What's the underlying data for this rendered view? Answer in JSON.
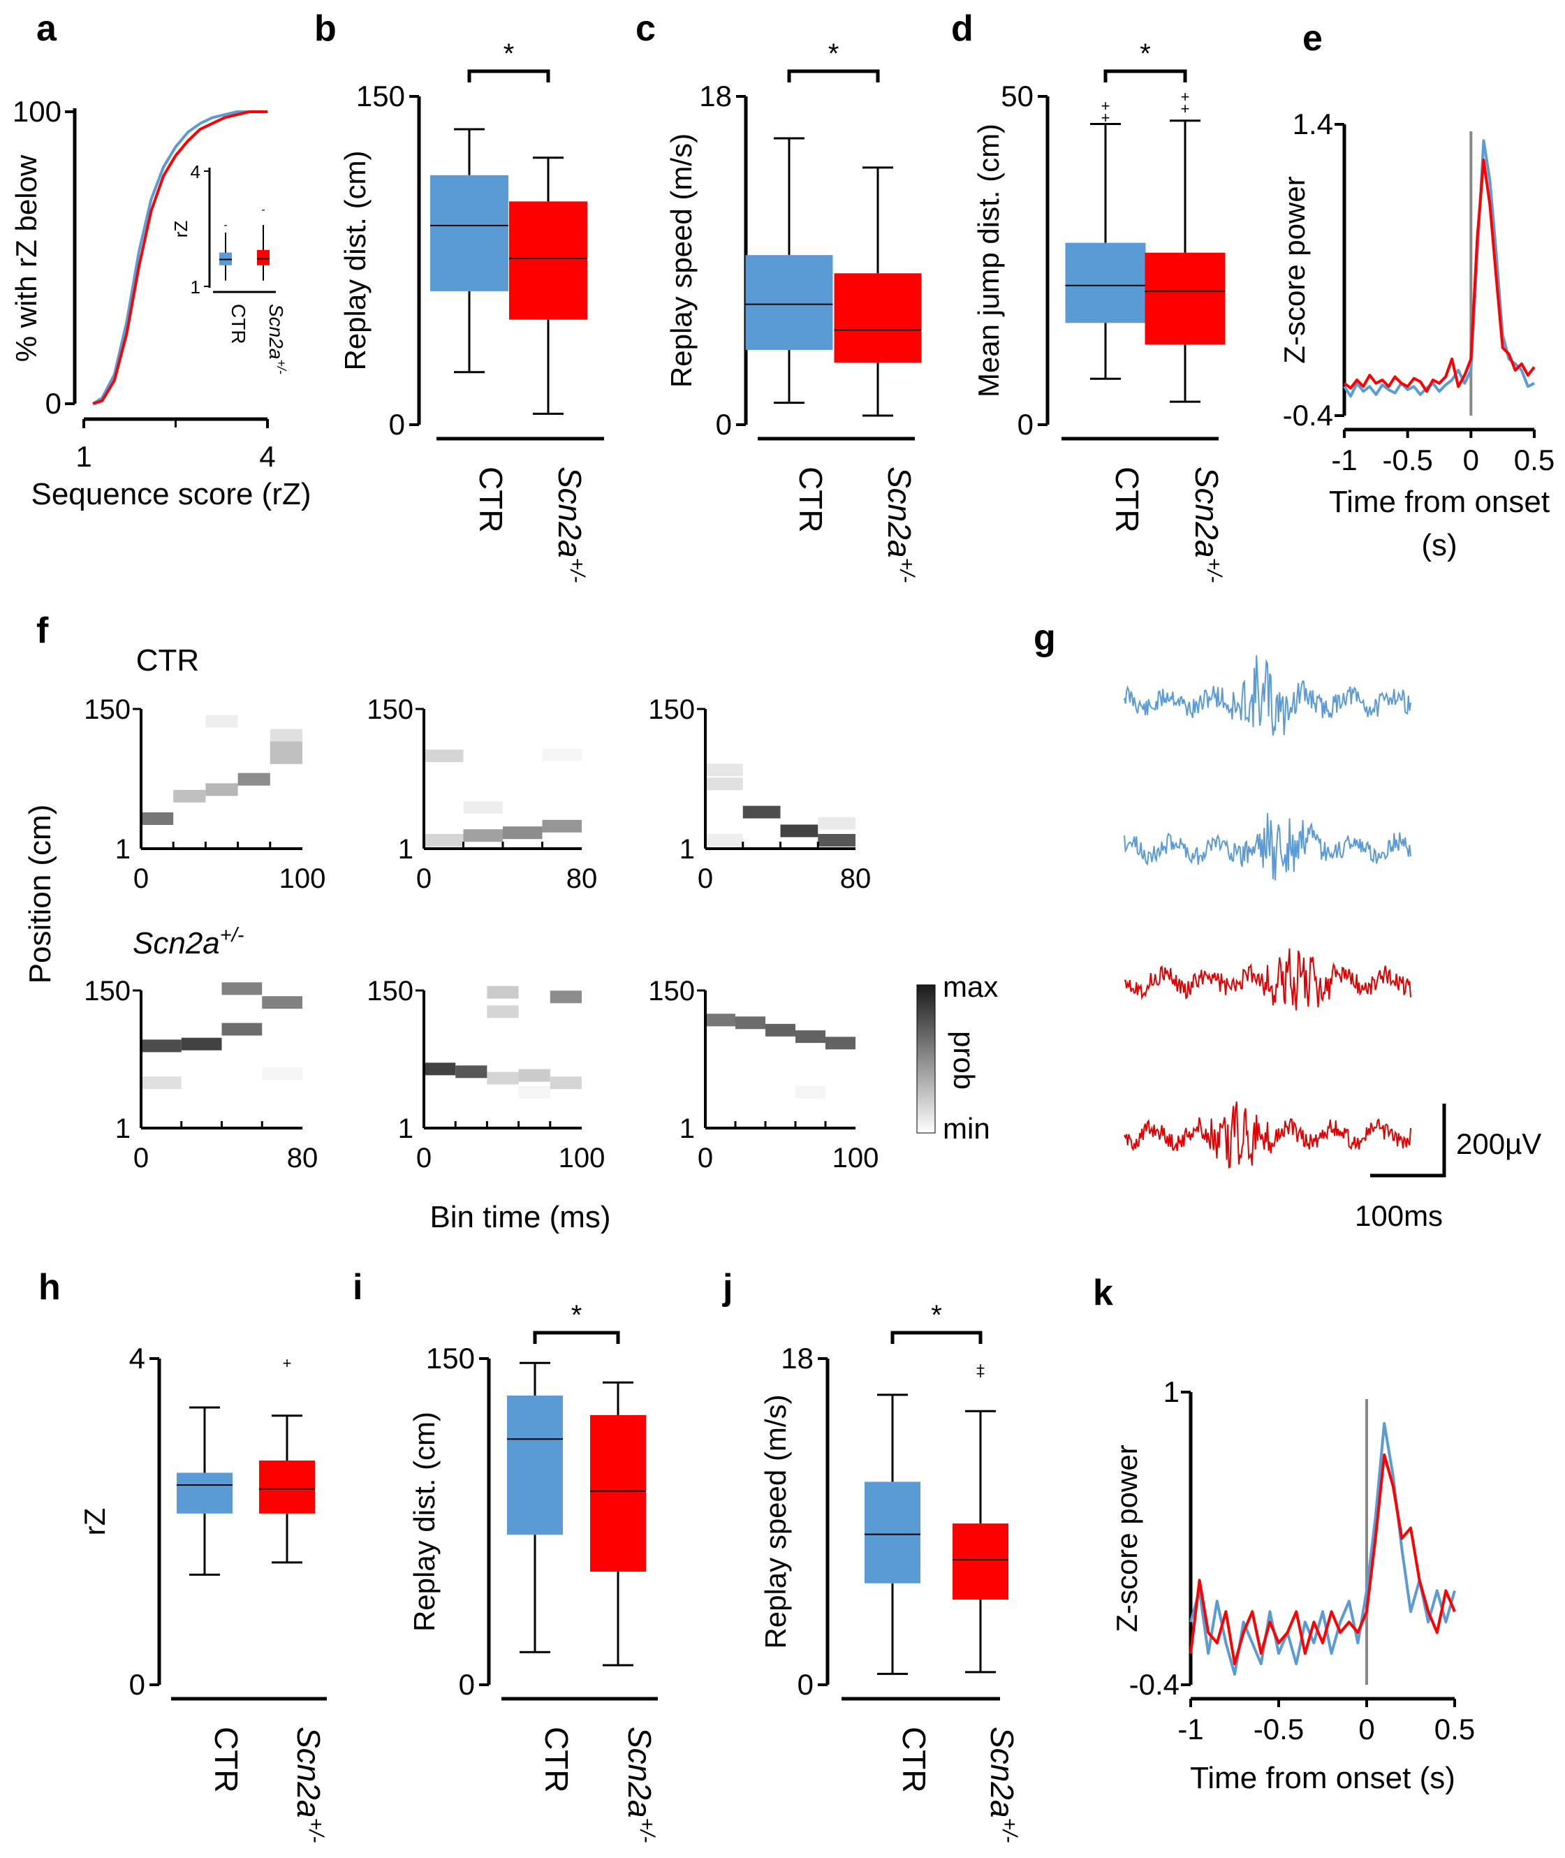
{
  "colors": {
    "ctr": "#5b9bd5",
    "scn": "#ff0000",
    "scn_line": "#e00000"
  },
  "group_labels": {
    "ctr": "CTR",
    "scn_base": "Scn2a",
    "scn_sup": "+/-"
  },
  "sig_marker": "*",
  "chart_data": [
    {
      "id": "a",
      "panel": "a",
      "type": "line",
      "title": "",
      "xlabel": "Sequence score (rZ)",
      "ylabel": "% with rZ below",
      "xlim": [
        1,
        4
      ],
      "ylim": [
        0,
        100
      ],
      "xticks": [
        "1",
        "4"
      ],
      "yticks": [
        "0",
        "100"
      ],
      "series": [
        {
          "name": "CTR",
          "color": "ctr",
          "x": [
            1.15,
            1.3,
            1.5,
            1.7,
            1.9,
            2.1,
            2.3,
            2.5,
            2.7,
            2.9,
            3.1,
            3.3,
            3.5,
            3.7,
            4.0
          ],
          "y": [
            0,
            2,
            10,
            28,
            52,
            70,
            81,
            88,
            93,
            96,
            98,
            99,
            100,
            100,
            100
          ]
        },
        {
          "name": "Scn2a+/-",
          "color": "scn",
          "x": [
            1.15,
            1.3,
            1.5,
            1.7,
            1.9,
            2.1,
            2.3,
            2.5,
            2.7,
            2.9,
            3.1,
            3.3,
            3.5,
            3.7,
            4.0
          ],
          "y": [
            0,
            1,
            8,
            24,
            47,
            66,
            78,
            85,
            90,
            94,
            96,
            98,
            99,
            100,
            100
          ]
        }
      ],
      "inset": {
        "ylabel": "rZ",
        "ylim": [
          1,
          4
        ],
        "yticks": [
          "1",
          "4"
        ],
        "groups": [
          {
            "name": "CTR",
            "min": 1.15,
            "q1": 1.55,
            "median": 1.7,
            "q3": 1.88,
            "max": 2.4,
            "outliers": [
              2.6
            ]
          },
          {
            "name": "Scn2a+/-",
            "min": 1.15,
            "q1": 1.55,
            "median": 1.72,
            "q3": 1.95,
            "max": 2.6,
            "outliers": [
              3.0
            ]
          }
        ]
      }
    },
    {
      "id": "b",
      "panel": "b",
      "type": "box",
      "ylabel": "Replay dist. (cm)",
      "ylim": [
        0,
        150
      ],
      "yticks": [
        "0",
        "150"
      ],
      "sig": true,
      "groups": [
        {
          "name": "CTR",
          "min": 24,
          "q1": 61,
          "median": 91,
          "q3": 114,
          "max": 135,
          "outliers": []
        },
        {
          "name": "Scn2a+/-",
          "min": 5,
          "q1": 48,
          "median": 76,
          "q3": 102,
          "max": 122,
          "outliers": []
        }
      ]
    },
    {
      "id": "c",
      "panel": "c",
      "type": "box",
      "ylabel": "Replay speed (m/s)",
      "ylim": [
        0,
        18
      ],
      "yticks": [
        "0",
        "18"
      ],
      "sig": true,
      "groups": [
        {
          "name": "CTR",
          "min": 1.2,
          "q1": 4.1,
          "median": 6.6,
          "q3": 9.3,
          "max": 15.7,
          "outliers": []
        },
        {
          "name": "Scn2a+/-",
          "min": 0.5,
          "q1": 3.4,
          "median": 5.2,
          "q3": 8.3,
          "max": 14.1,
          "outliers": []
        }
      ]
    },
    {
      "id": "d",
      "panel": "d",
      "type": "box",
      "ylabel": "Mean jump dist. (cm)",
      "ylim": [
        0,
        50
      ],
      "yticks": [
        "0",
        "50"
      ],
      "sig": true,
      "groups": [
        {
          "name": "CTR",
          "min": 7,
          "q1": 15.5,
          "median": 21.2,
          "q3": 27.7,
          "max": 45.8,
          "outliers": [
            46.8,
            48.6
          ]
        },
        {
          "name": "Scn2a+/-",
          "min": 3.5,
          "q1": 12.2,
          "median": 20.3,
          "q3": 26.2,
          "max": 46.3,
          "outliers": [
            48.2,
            50.0
          ]
        }
      ]
    },
    {
      "id": "e",
      "panel": "e",
      "type": "line",
      "ylabel": "Z-score power",
      "xlabel": "Time from onset (s)",
      "xlim": [
        -1,
        0.5
      ],
      "ylim": [
        -0.4,
        1.4
      ],
      "xticks": [
        "-1",
        "-0.5",
        "0",
        "0.5"
      ],
      "yticks": [
        "-0.4",
        "1.4"
      ],
      "x": [
        -1.0,
        -0.95,
        -0.9,
        -0.85,
        -0.8,
        -0.75,
        -0.7,
        -0.65,
        -0.6,
        -0.55,
        -0.5,
        -0.45,
        -0.4,
        -0.35,
        -0.3,
        -0.25,
        -0.2,
        -0.15,
        -0.1,
        -0.05,
        0.0,
        0.05,
        0.1,
        0.15,
        0.2,
        0.25,
        0.3,
        0.35,
        0.4,
        0.45,
        0.5
      ],
      "series": [
        {
          "name": "CTR",
          "color": "ctr",
          "values": [
            -0.22,
            -0.28,
            -0.2,
            -0.25,
            -0.22,
            -0.27,
            -0.21,
            -0.24,
            -0.26,
            -0.2,
            -0.24,
            -0.22,
            -0.27,
            -0.23,
            -0.2,
            -0.25,
            -0.21,
            -0.18,
            -0.12,
            -0.2,
            -0.12,
            0.6,
            1.3,
            1.05,
            0.6,
            0.1,
            -0.05,
            -0.08,
            -0.12,
            -0.22,
            -0.2
          ]
        },
        {
          "name": "Scn2a+/-",
          "color": "scn",
          "values": [
            -0.2,
            -0.23,
            -0.18,
            -0.22,
            -0.15,
            -0.2,
            -0.18,
            -0.22,
            -0.16,
            -0.2,
            -0.22,
            -0.17,
            -0.19,
            -0.25,
            -0.18,
            -0.2,
            -0.16,
            -0.05,
            -0.22,
            -0.15,
            -0.05,
            0.7,
            1.18,
            0.9,
            0.45,
            0.02,
            -0.02,
            -0.12,
            -0.08,
            -0.15,
            -0.1
          ]
        }
      ]
    },
    {
      "id": "h",
      "panel": "h",
      "type": "box",
      "ylabel": "rZ",
      "ylim": [
        0,
        4
      ],
      "yticks": [
        "0",
        "4"
      ],
      "sig": false,
      "groups": [
        {
          "name": "CTR",
          "min": 1.35,
          "q1": 2.1,
          "median": 2.45,
          "q3": 2.6,
          "max": 3.4,
          "outliers": []
        },
        {
          "name": "Scn2a+/-",
          "min": 1.5,
          "q1": 2.1,
          "median": 2.4,
          "q3": 2.75,
          "max": 3.3,
          "outliers": [
            3.95
          ]
        }
      ]
    },
    {
      "id": "i",
      "panel": "i",
      "type": "box",
      "ylabel": "Replay dist. (cm)",
      "ylim": [
        0,
        150
      ],
      "yticks": [
        "0",
        "150"
      ],
      "sig": true,
      "groups": [
        {
          "name": "CTR",
          "min": 15,
          "q1": 69,
          "median": 113,
          "q3": 133,
          "max": 148,
          "outliers": []
        },
        {
          "name": "Scn2a+/-",
          "min": 9,
          "q1": 52,
          "median": 89,
          "q3": 124,
          "max": 139,
          "outliers": []
        }
      ]
    },
    {
      "id": "j",
      "panel": "j",
      "type": "box",
      "ylabel": "Replay speed (m/s)",
      "ylim": [
        0,
        18
      ],
      "yticks": [
        "0",
        "18"
      ],
      "sig": true,
      "groups": [
        {
          "name": "CTR",
          "min": 0.6,
          "q1": 5.6,
          "median": 8.3,
          "q3": 11.2,
          "max": 16.0,
          "outliers": []
        },
        {
          "name": "Scn2a+/-",
          "min": 0.7,
          "q1": 4.7,
          "median": 6.9,
          "q3": 8.9,
          "max": 15.1,
          "outliers": [
            17.2,
            17.5
          ]
        }
      ]
    },
    {
      "id": "k",
      "panel": "k",
      "type": "line",
      "ylabel": "Z-score power",
      "xlabel": "Time from onset (s)",
      "xlim": [
        -1,
        0.5
      ],
      "ylim": [
        -0.4,
        1.0
      ],
      "xticks": [
        "-1",
        "-0.5",
        "0",
        "0.5"
      ],
      "yticks": [
        "-0.4",
        "1"
      ],
      "x": [
        -1.0,
        -0.95,
        -0.9,
        -0.85,
        -0.8,
        -0.75,
        -0.7,
        -0.65,
        -0.6,
        -0.55,
        -0.5,
        -0.45,
        -0.4,
        -0.35,
        -0.3,
        -0.25,
        -0.2,
        -0.15,
        -0.1,
        -0.05,
        0.0,
        0.05,
        0.1,
        0.15,
        0.2,
        0.25,
        0.3,
        0.35,
        0.4,
        0.45,
        0.5
      ],
      "series": [
        {
          "name": "CTR",
          "color": "ctr",
          "values": [
            -0.1,
            0.05,
            -0.25,
            0.0,
            -0.2,
            -0.35,
            -0.1,
            -0.2,
            -0.3,
            -0.05,
            -0.25,
            -0.15,
            -0.3,
            -0.1,
            -0.2,
            -0.05,
            -0.25,
            -0.1,
            0.0,
            -0.2,
            0.05,
            0.4,
            0.85,
            0.6,
            0.25,
            -0.05,
            0.1,
            -0.1,
            0.05,
            -0.1,
            0.05
          ]
        },
        {
          "name": "Scn2a+/-",
          "color": "scn",
          "values": [
            -0.25,
            0.1,
            -0.15,
            -0.2,
            -0.05,
            -0.3,
            -0.15,
            -0.05,
            -0.25,
            -0.1,
            -0.2,
            -0.15,
            -0.05,
            -0.25,
            -0.1,
            -0.2,
            -0.05,
            -0.15,
            -0.1,
            -0.15,
            -0.05,
            0.3,
            0.7,
            0.55,
            0.3,
            0.35,
            0.1,
            -0.05,
            -0.15,
            0.05,
            -0.05
          ]
        }
      ]
    },
    {
      "id": "f",
      "panel": "f",
      "type": "heatmap",
      "ylabel": "Position (cm)",
      "xlabel": "Bin time (ms)",
      "colorbar": {
        "label": "prob",
        "max_label": "max",
        "min_label": "min"
      },
      "rows": [
        {
          "label_base": "CTR",
          "label_sup": "",
          "plots": [
            {
              "xmax": 100,
              "xticks": [
                "0",
                "100"
              ],
              "yticks": [
                "1",
                "150"
              ],
              "bins": [
                [
                  {
                    "y": 33,
                    "p": 0.65
                  }
                ],
                [
                  {
                    "y": 57,
                    "p": 0.3
                  }
                ],
                [
                  {
                    "y": 64,
                    "p": 0.35
                  },
                  {
                    "y": 137,
                    "p": 0.08
                  }
                ],
                [
                  {
                    "y": 75,
                    "p": 0.55
                  }
                ],
                [
                  {
                    "y": 98,
                    "p": 0.3
                  },
                  {
                    "y": 110,
                    "p": 0.3
                  },
                  {
                    "y": 122,
                    "p": 0.15
                  }
                ]
              ]
            },
            {
              "xmax": 80,
              "xticks": [
                "0",
                "80"
              ],
              "yticks": [
                "1",
                "150"
              ],
              "bins": [
                [
                  {
                    "y": 10,
                    "p": 0.2
                  },
                  {
                    "y": 100,
                    "p": 0.2
                  }
                ],
                [
                  {
                    "y": 15,
                    "p": 0.45
                  },
                  {
                    "y": 45,
                    "p": 0.08
                  }
                ],
                [
                  {
                    "y": 18,
                    "p": 0.55
                  }
                ],
                [
                  {
                    "y": 25,
                    "p": 0.5
                  },
                  {
                    "y": 101,
                    "p": 0.05
                  }
                ]
              ]
            },
            {
              "xmax": 80,
              "xticks": [
                "0",
                "80"
              ],
              "yticks": [
                "1",
                "150"
              ],
              "bins": [
                [
                  {
                    "y": 70,
                    "p": 0.15
                  },
                  {
                    "y": 85,
                    "p": 0.12
                  },
                  {
                    "y": 10,
                    "p": 0.08
                  }
                ],
                [
                  {
                    "y": 40,
                    "p": 0.85
                  }
                ],
                [
                  {
                    "y": 20,
                    "p": 0.9
                  }
                ],
                [
                  {
                    "y": 10,
                    "p": 0.8
                  },
                  {
                    "y": 28,
                    "p": 0.1
                  }
                ]
              ]
            }
          ]
        },
        {
          "label_base": "Scn2a",
          "label_sup": "+/-",
          "plots": [
            {
              "xmax": 80,
              "xticks": [
                "0",
                "80"
              ],
              "yticks": [
                "1",
                "150"
              ],
              "bins": [
                [
                  {
                    "y": 90,
                    "p": 0.85
                  },
                  {
                    "y": 50,
                    "p": 0.15
                  }
                ],
                [
                  {
                    "y": 92,
                    "p": 0.9
                  }
                ],
                [
                  {
                    "y": 108,
                    "p": 0.7
                  },
                  {
                    "y": 152,
                    "p": 0.6
                  }
                ],
                [
                  {
                    "y": 137,
                    "p": 0.6
                  },
                  {
                    "y": 60,
                    "p": 0.05
                  }
                ]
              ]
            },
            {
              "xmax": 100,
              "xticks": [
                "0",
                "100"
              ],
              "yticks": [
                "1",
                "150"
              ],
              "bins": [
                [
                  {
                    "y": 65,
                    "p": 0.9
                  }
                ],
                [
                  {
                    "y": 62,
                    "p": 0.8
                  }
                ],
                [
                  {
                    "y": 55,
                    "p": 0.2
                  },
                  {
                    "y": 127,
                    "p": 0.2
                  },
                  {
                    "y": 148,
                    "p": 0.25
                  }
                ],
                [
                  {
                    "y": 58,
                    "p": 0.25
                  },
                  {
                    "y": 40,
                    "p": 0.05
                  }
                ],
                [
                  {
                    "y": 50,
                    "p": 0.2
                  },
                  {
                    "y": 143,
                    "p": 0.55
                  }
                ]
              ]
            },
            {
              "xmax": 100,
              "xticks": [
                "0",
                "100"
              ],
              "yticks": [
                "1",
                "150"
              ],
              "bins": [
                [
                  {
                    "y": 118,
                    "p": 0.65
                  }
                ],
                [
                  {
                    "y": 115,
                    "p": 0.7
                  }
                ],
                [
                  {
                    "y": 107,
                    "p": 0.75
                  }
                ],
                [
                  {
                    "y": 100,
                    "p": 0.75
                  },
                  {
                    "y": 40,
                    "p": 0.05
                  }
                ],
                [
                  {
                    "y": 93,
                    "p": 0.75
                  }
                ]
              ]
            }
          ]
        }
      ]
    }
  ],
  "panel_g": {
    "scale_amplitude": "200µV",
    "scale_time": "100ms"
  }
}
